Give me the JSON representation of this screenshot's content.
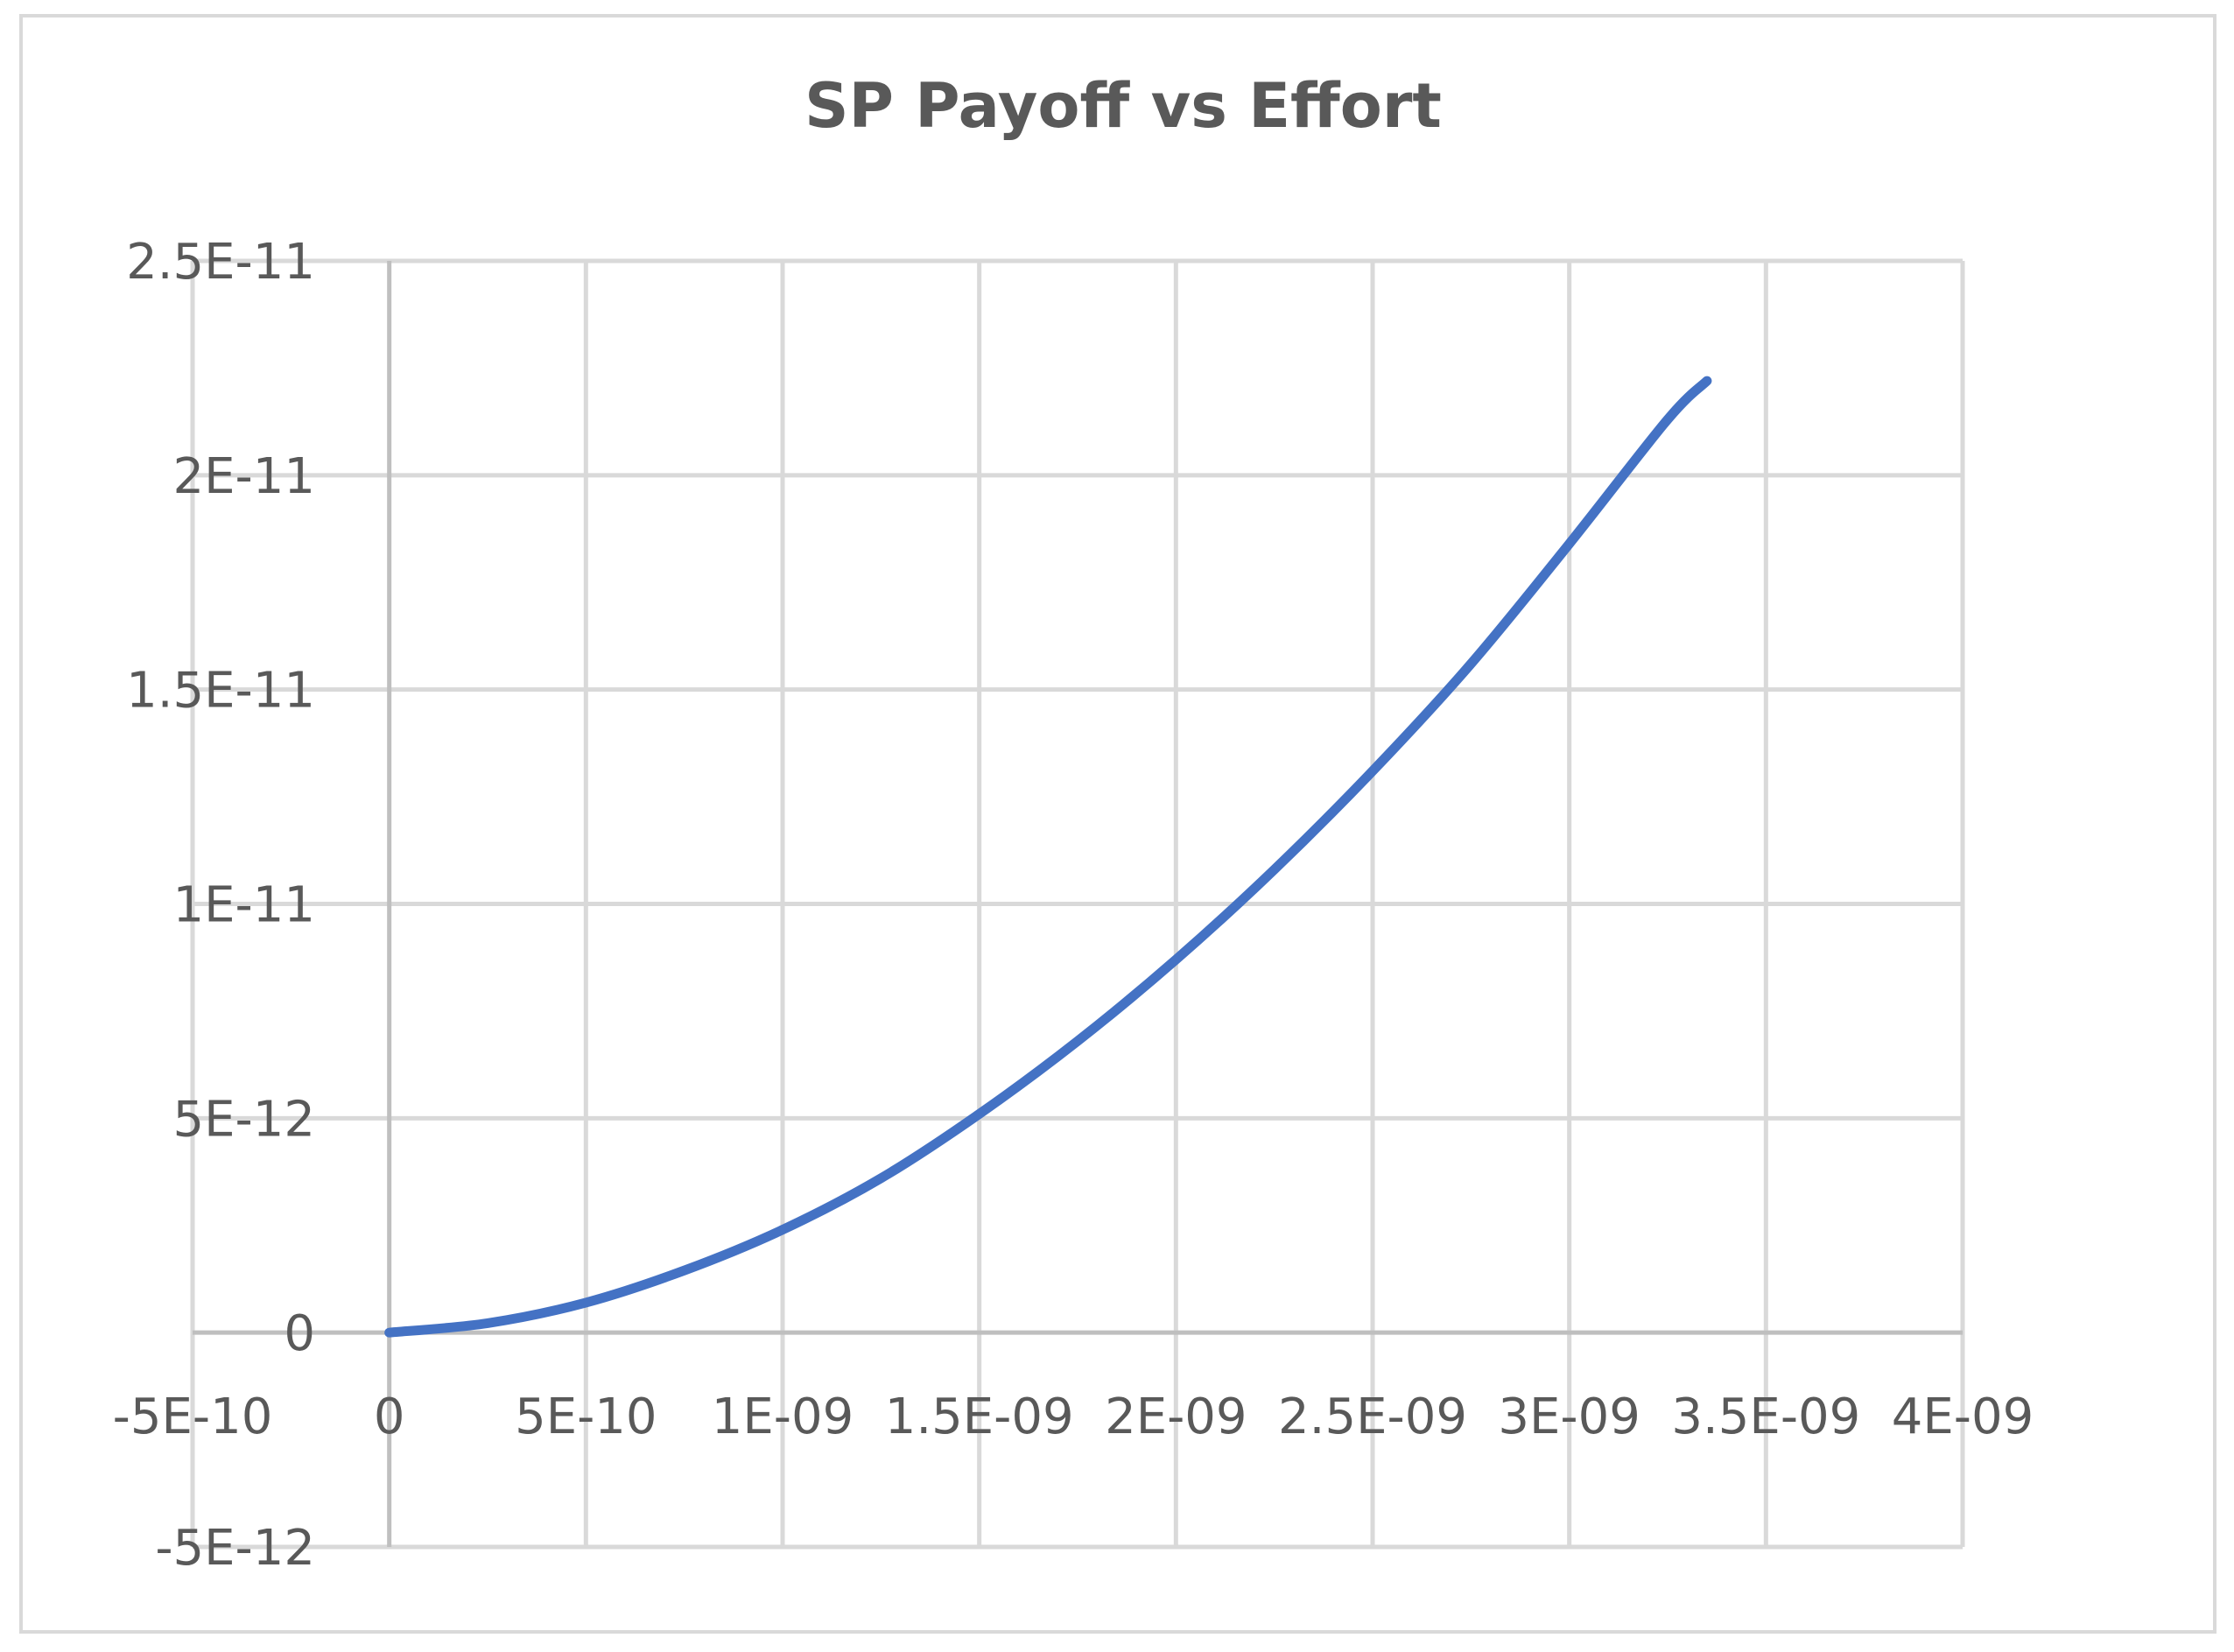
{
  "chart_data": {
    "type": "scatter",
    "title": "SP Payoff vs Effort",
    "xlabel": "",
    "ylabel": "",
    "xlim": [
      -5e-10,
      4e-09
    ],
    "ylim": [
      -5e-12,
      2.5e-11
    ],
    "x_ticks": [
      -5e-10,
      0,
      5e-10,
      1e-09,
      1.5e-09,
      2e-09,
      2.5e-09,
      3e-09,
      3.5e-09,
      4e-09
    ],
    "x_tick_labels": [
      "-5E-10",
      "0",
      "5E-10",
      "1E-09",
      "1.5E-09",
      "2E-09",
      "2.5E-09",
      "3E-09",
      "3.5E-09",
      "4E-09"
    ],
    "y_ticks": [
      -5e-12,
      0,
      5e-12,
      1e-11,
      1.5e-11,
      2e-11,
      2.5e-11
    ],
    "y_tick_labels": [
      "-5E-12",
      "0",
      "5E-12",
      "1E-11",
      "1.5E-11",
      "2E-11",
      "2.5E-11"
    ],
    "grid": true,
    "legend": "none",
    "series": [
      {
        "color": "#4472C4",
        "x": [
          0,
          2.5e-10,
          5e-10,
          7.5e-10,
          1e-09,
          1.25e-09,
          1.5e-09,
          1.75e-09,
          2e-09,
          2.25e-09,
          2.5e-09,
          2.75e-09,
          3e-09,
          3.25e-09,
          3.35e-09
        ],
        "y": [
          0,
          2.2e-13,
          7e-13,
          1.45e-12,
          2.4e-12,
          3.6e-12,
          5.1e-12,
          6.8e-12,
          8.7e-12,
          1.08e-11,
          1.31e-11,
          1.56e-11,
          1.84e-11,
          2.13e-11,
          2.22e-11
        ]
      }
    ]
  }
}
